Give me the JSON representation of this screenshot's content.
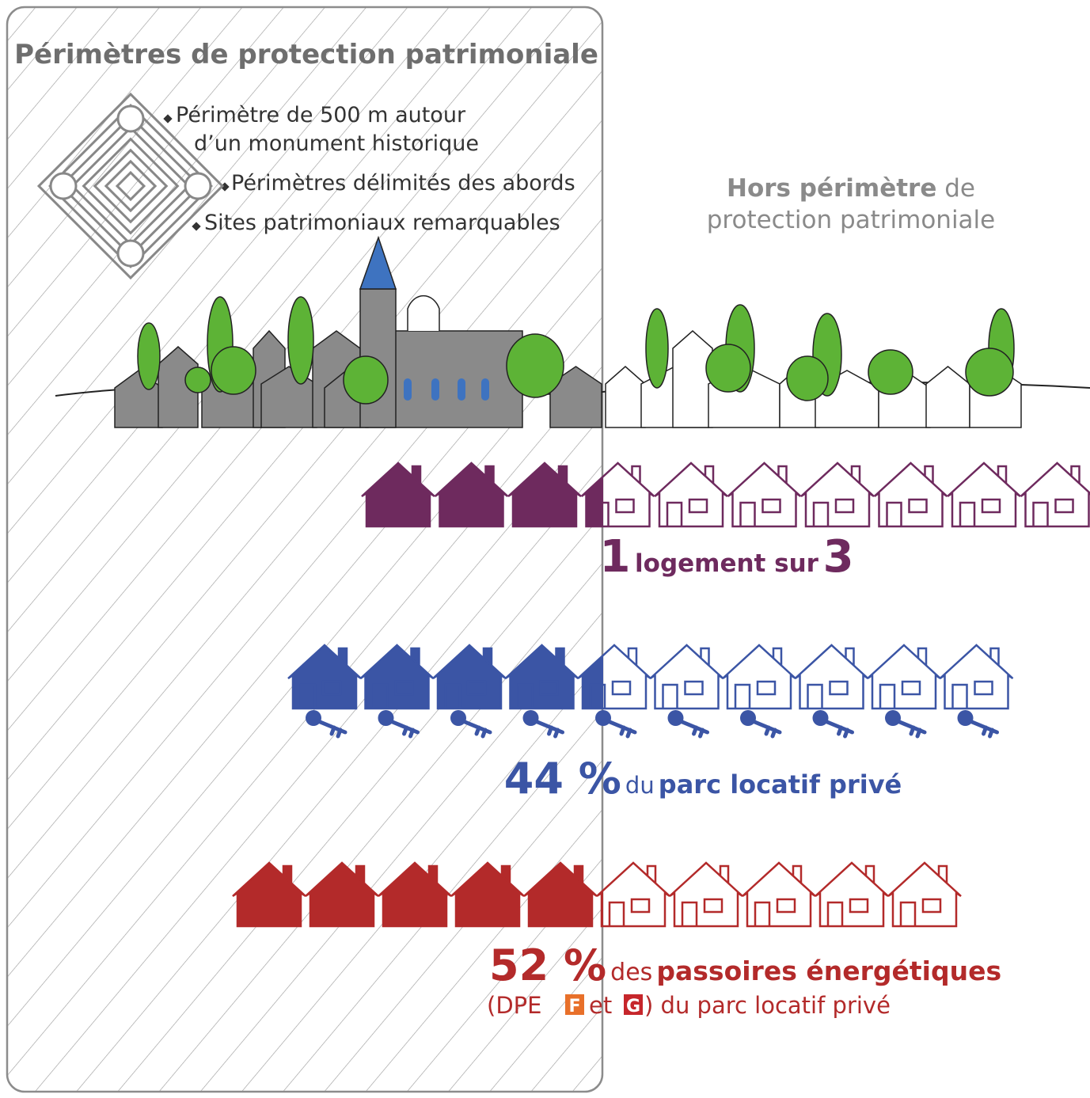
{
  "left_panel": {
    "title": "Périmètres de protection patrimoniale",
    "items": [
      {
        "lines": [
          "Périmètre de 500 m autour",
          "d’un monument historique"
        ]
      },
      {
        "lines": [
          "Périmètres délimités des abords"
        ]
      },
      {
        "lines": [
          "Sites patrimoniaux remarquables"
        ]
      }
    ]
  },
  "right_label": {
    "bold": "Hors périmètre",
    "rest": "de",
    "line2": "protection patrimoniale"
  },
  "stats": [
    {
      "num": "1",
      "text": "logement sur",
      "num2": "3"
    },
    {
      "num": "44 %",
      "small": "du",
      "bold": "parc locatif privé"
    },
    {
      "num": "52 %",
      "small": "des",
      "bold": "passoires énergétiques",
      "line2": {
        "open": "(DPE",
        "f": "F",
        "et": "et",
        "g": "G",
        "close": ") du parc locatif privé"
      }
    }
  ]
}
